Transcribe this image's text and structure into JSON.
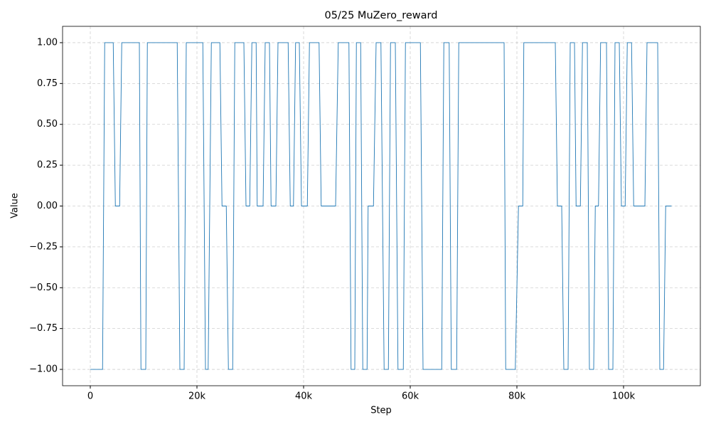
{
  "chart_data": {
    "type": "line",
    "title": "05/25  MuZero_reward",
    "x_label": "Step",
    "y_label": "Value",
    "x": [
      0,
      2300,
      2700,
      4300,
      4700,
      5500,
      5900,
      9200,
      9500,
      10400,
      10700,
      16300,
      16800,
      17600,
      18000,
      21100,
      21600,
      22100,
      22700,
      24300,
      24700,
      25500,
      25900,
      26700,
      27100,
      28800,
      29200,
      29900,
      30300,
      31100,
      31300,
      32400,
      32800,
      33600,
      33900,
      34800,
      35200,
      37100,
      37500,
      38100,
      38500,
      39200,
      39600,
      40700,
      41100,
      42900,
      43300,
      46000,
      46500,
      48500,
      48900,
      49600,
      49900,
      50700,
      51100,
      51900,
      52100,
      53100,
      53600,
      54500,
      55100,
      55900,
      56300,
      57200,
      57700,
      58700,
      59100,
      61900,
      62400,
      65900,
      66300,
      67300,
      67700,
      68700,
      69100,
      77600,
      77900,
      79700,
      80300,
      81100,
      81300,
      87200,
      87600,
      88400,
      88800,
      89600,
      90000,
      90800,
      91100,
      91900,
      92300,
      93200,
      93600,
      94400,
      94700,
      95300,
      95700,
      96800,
      97200,
      98000,
      98400,
      99200,
      99600,
      100300,
      100700,
      101500,
      101900,
      104000,
      104400,
      106400,
      106800,
      107500,
      107900,
      109000
    ],
    "series": [
      {
        "name": "MuZero_reward",
        "color": "#1f77b4",
        "values": [
          -1,
          -1,
          1,
          1,
          0,
          0,
          1,
          1,
          -1,
          -1,
          1,
          1,
          -1,
          -1,
          1,
          1,
          -1,
          -1,
          1,
          1,
          0,
          0,
          -1,
          -1,
          1,
          1,
          0,
          0,
          1,
          1,
          0,
          0,
          1,
          1,
          0,
          0,
          1,
          1,
          0,
          0,
          1,
          1,
          0,
          0,
          1,
          1,
          0,
          0,
          1,
          1,
          -1,
          -1,
          1,
          1,
          -1,
          -1,
          0,
          0,
          1,
          1,
          -1,
          -1,
          1,
          1,
          -1,
          -1,
          1,
          1,
          -1,
          -1,
          1,
          1,
          -1,
          -1,
          1,
          1,
          -1,
          -1,
          0,
          0,
          1,
          1,
          0,
          0,
          -1,
          -1,
          1,
          1,
          0,
          0,
          1,
          1,
          -1,
          -1,
          0,
          0,
          1,
          1,
          -1,
          -1,
          1,
          1,
          0,
          0,
          1,
          1,
          0,
          0,
          1,
          1,
          -1,
          -1,
          0,
          0
        ]
      }
    ],
    "xlim": [
      -5200,
      114400
    ],
    "ylim": [
      -1.1,
      1.1
    ],
    "xticks": [
      0,
      {
        "value": 20000,
        "label": "20k"
      },
      {
        "value": 40000,
        "label": "40k"
      },
      {
        "value": 60000,
        "label": "60k"
      },
      {
        "value": 80000,
        "label": "80k"
      },
      {
        "value": 100000,
        "label": "100k"
      }
    ],
    "yticks": [
      {
        "value": -1,
        "label": "−1.00"
      },
      {
        "value": -0.75,
        "label": "−0.75"
      },
      {
        "value": -0.5,
        "label": "−0.50"
      },
      {
        "value": -0.25,
        "label": "−0.25"
      },
      {
        "value": 0,
        "label": "0.00"
      },
      {
        "value": 0.25,
        "label": "0.25"
      },
      {
        "value": 0.5,
        "label": "0.50"
      },
      {
        "value": 0.75,
        "label": "0.75"
      },
      {
        "value": 1,
        "label": "1.00"
      }
    ],
    "grid": true
  }
}
